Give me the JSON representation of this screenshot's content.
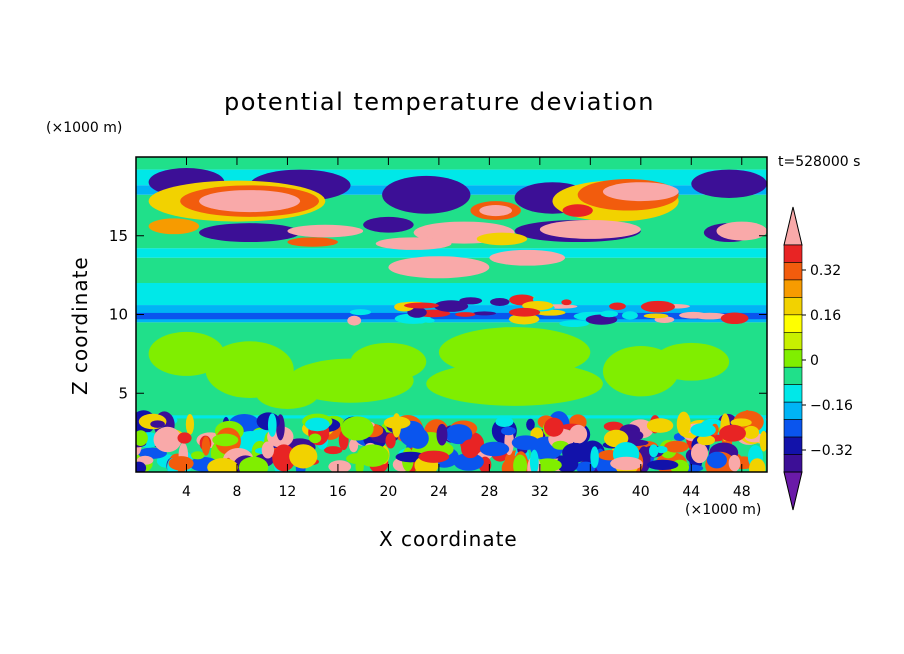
{
  "chart_data": {
    "type": "heatmap",
    "title": "potential temperature deviation",
    "xlabel": "X coordinate",
    "ylabel": "Z coordinate",
    "x_unit": "(×1000 m)",
    "y_unit": "(×1000 m)",
    "time_label": "t=528000 s",
    "xlim": [
      0,
      50
    ],
    "ylim": [
      0,
      20
    ],
    "x_ticks": [
      4,
      8,
      12,
      16,
      20,
      24,
      28,
      32,
      36,
      40,
      44,
      48
    ],
    "y_ticks": [
      5,
      10,
      15
    ],
    "colorbar": {
      "labeled_levels": [
        "0.32",
        "0.16",
        "0",
        "−0.16",
        "−0.32"
      ],
      "colors": [
        "#f9a9a9",
        "#e82424",
        "#f25c0d",
        "#f79b00",
        "#f2d200",
        "#ffff00",
        "#c8f000",
        "#80ee00",
        "#20e08a",
        "#00e8e8",
        "#00b4f5",
        "#0a55ee",
        "#1212aa",
        "#3c0f96",
        "#6a1aa8"
      ]
    },
    "layers": [
      {
        "z": [
          19.2,
          20.0
        ],
        "dominant": "#20e08a"
      },
      {
        "z": [
          16.5,
          19.2
        ],
        "dominant": "mixed: #6a1aa8, #f9a9a9, #f25c0d, #ffff00, #00e8e8"
      },
      {
        "z": [
          14.0,
          16.0
        ],
        "dominant": "mixed: #3c0f96, #f9a9a9, #f79b00"
      },
      {
        "z": [
          10.5,
          14.0
        ],
        "dominant": "#00e8e8"
      },
      {
        "z": [
          9.5,
          10.5
        ],
        "dominant": "#0a55ee"
      },
      {
        "z": [
          3.5,
          9.5
        ],
        "dominant": "#80ee00"
      },
      {
        "z": [
          0.0,
          3.5
        ],
        "dominant": "mixed: #3c0f96, #e82424, #f9a9a9, #0a55ee"
      }
    ]
  }
}
